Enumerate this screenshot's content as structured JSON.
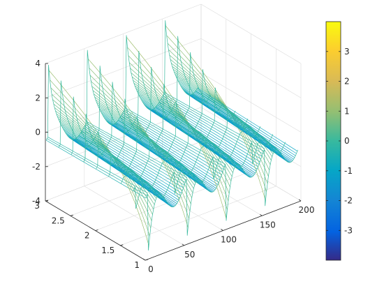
{
  "chart_data": {
    "type": "mesh3d",
    "title": "",
    "xlabel": "",
    "ylabel": "",
    "zlabel": "",
    "x_range": [
      0,
      200
    ],
    "y_range": [
      1,
      3
    ],
    "z_range": [
      -4,
      4
    ],
    "x_ticks": [
      0,
      50,
      100,
      150,
      200
    ],
    "x_tick_labels": [
      "0",
      "50",
      "100",
      "150",
      "200"
    ],
    "y_ticks": [
      1,
      1.5,
      2,
      2.5,
      3
    ],
    "y_tick_labels": [
      "1",
      "1.5",
      "2",
      "2.5",
      "3"
    ],
    "z_ticks": [
      -4,
      -2,
      0,
      2,
      4
    ],
    "z_tick_labels": [
      "-4",
      "-2",
      "0",
      "2",
      "4"
    ],
    "peaks": [
      {
        "x": 4,
        "y": 3,
        "z": 3.9
      },
      {
        "x": 50,
        "y": 3,
        "z": 3.9
      },
      {
        "x": 100,
        "y": 3,
        "z": 3.9
      },
      {
        "x": 150,
        "y": 3,
        "z": 3.9
      }
    ],
    "troughs": [
      {
        "x": 4,
        "y": 3,
        "z": -3.5
      }
    ],
    "grid": true,
    "colormap": "parula",
    "colorbar": {
      "range": [
        -4,
        4
      ],
      "ticks": [
        3,
        2,
        1,
        0,
        -1,
        -2,
        -3
      ],
      "tick_labels": [
        "3",
        "2",
        "1",
        "0",
        "-1",
        "-2",
        "-3"
      ]
    }
  }
}
